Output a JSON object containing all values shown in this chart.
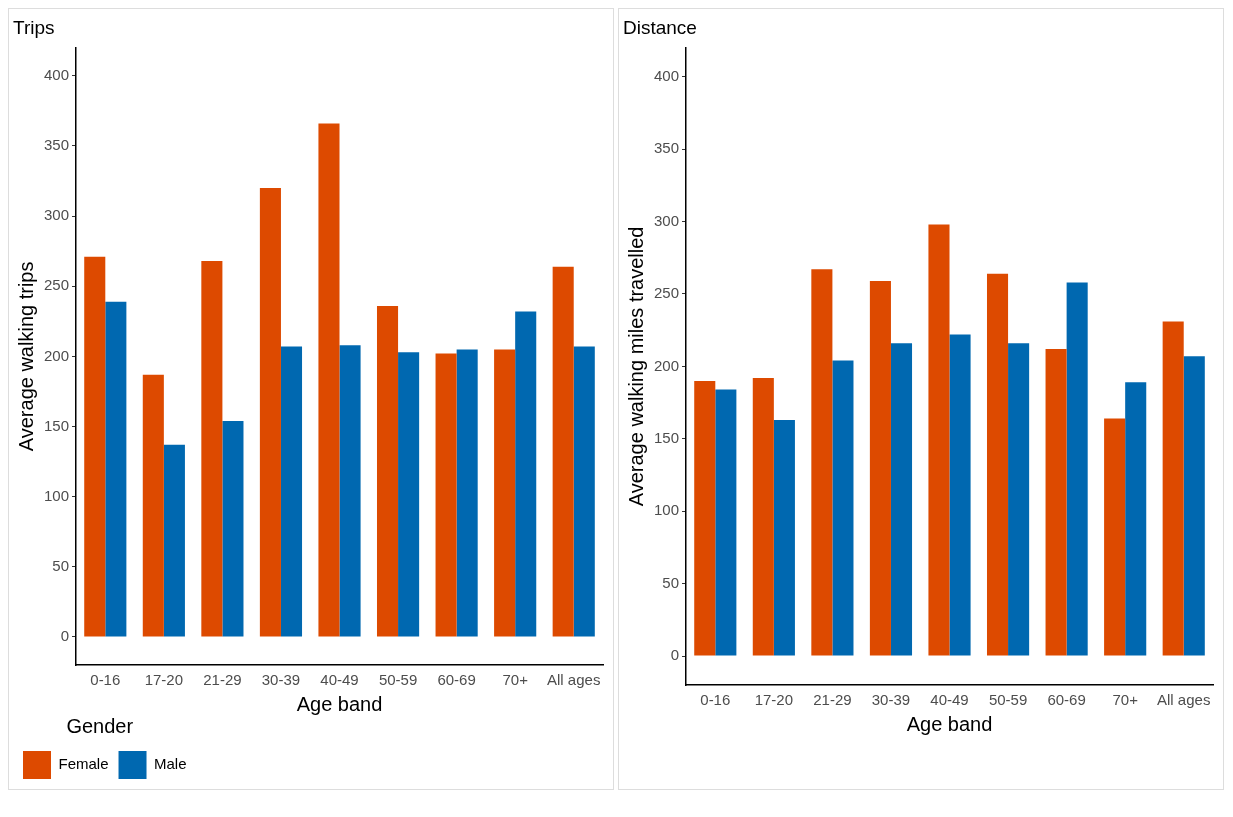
{
  "chart_data": [
    {
      "type": "bar",
      "title": "Trips",
      "xlabel": "Age band",
      "ylabel": "Average walking trips",
      "legend_title": "Gender",
      "legend": "bottom",
      "grid": false,
      "categories": [
        "0-16",
        "17-20",
        "21-29",
        "30-39",
        "40-49",
        "50-59",
        "60-69",
        "70+",
        "All ages"
      ],
      "series": [
        {
          "name": "Female",
          "color": "#dd4a00",
          "values": [
            271,
            187,
            268,
            320,
            366,
            236,
            202,
            205,
            264
          ]
        },
        {
          "name": "Male",
          "color": "#0068b0",
          "values": [
            239,
            137,
            154,
            207,
            208,
            203,
            205,
            232,
            207
          ]
        }
      ],
      "ylim": [
        -20,
        420
      ],
      "yticks": [
        0,
        50,
        100,
        150,
        200,
        250,
        300,
        350,
        400
      ]
    },
    {
      "type": "bar",
      "title": "Distance",
      "xlabel": "Age band",
      "ylabel": "Average walking miles travelled",
      "legend": false,
      "grid": false,
      "categories": [
        "0-16",
        "17-20",
        "21-29",
        "30-39",
        "40-49",
        "50-59",
        "60-69",
        "70+",
        "All ages"
      ],
      "series": [
        {
          "color": "#dd4a00",
          "values": [
            190,
            192,
            267,
            259,
            298,
            264,
            212,
            164,
            231
          ]
        },
        {
          "color": "#0068b0",
          "values": [
            184,
            163,
            204,
            216,
            222,
            216,
            258,
            189,
            207
          ]
        }
      ],
      "ylim": [
        -20,
        420
      ],
      "yticks": [
        0,
        50,
        100,
        150,
        200,
        250,
        300,
        350,
        400
      ]
    }
  ]
}
